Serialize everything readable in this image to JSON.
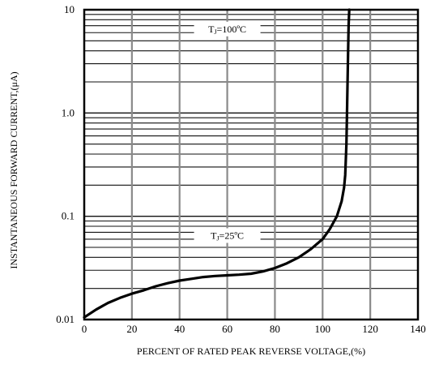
{
  "chart_data": {
    "type": "line",
    "xlabel": "PERCENT OF RATED PEAK REVERSE VOLTAGE,(%)",
    "ylabel": "INSTANTANEOUS FORWARD CURRENT,(μA)",
    "xlim": [
      0,
      140
    ],
    "ylim": [
      0.01,
      10
    ],
    "yscale": "log",
    "x_ticks": [
      "0",
      "20",
      "40",
      "60",
      "80",
      "100",
      "120",
      "140"
    ],
    "y_ticks": [
      {
        "value": 10,
        "label": "10"
      },
      {
        "value": 1,
        "label": "1.0"
      },
      {
        "value": 0.1,
        "label": "0.1"
      },
      {
        "value": 0.01,
        "label": "0.01"
      }
    ],
    "grid": true,
    "annotations": [
      {
        "sub": "J",
        "text": "=100ºC",
        "x": 60,
        "y": 6.5
      },
      {
        "sub": "J",
        "text": "=25ºC",
        "x": 60,
        "y": 0.065
      }
    ],
    "series": [
      {
        "x": [
          0,
          5,
          10,
          15,
          20,
          25,
          30,
          35,
          40,
          45,
          50,
          55,
          60,
          65,
          70,
          75,
          80,
          85,
          90,
          95,
          100,
          103,
          106,
          108,
          109,
          109.5,
          110,
          110.3,
          110.6,
          110.9,
          111.2
        ],
        "y": [
          0.0105,
          0.0125,
          0.0145,
          0.0162,
          0.0178,
          0.0192,
          0.021,
          0.0225,
          0.0238,
          0.0248,
          0.0258,
          0.0264,
          0.0268,
          0.0272,
          0.0278,
          0.0292,
          0.0315,
          0.035,
          0.04,
          0.048,
          0.06,
          0.075,
          0.1,
          0.14,
          0.19,
          0.25,
          0.5,
          1.2,
          3.0,
          7.0,
          10
        ]
      }
    ]
  }
}
